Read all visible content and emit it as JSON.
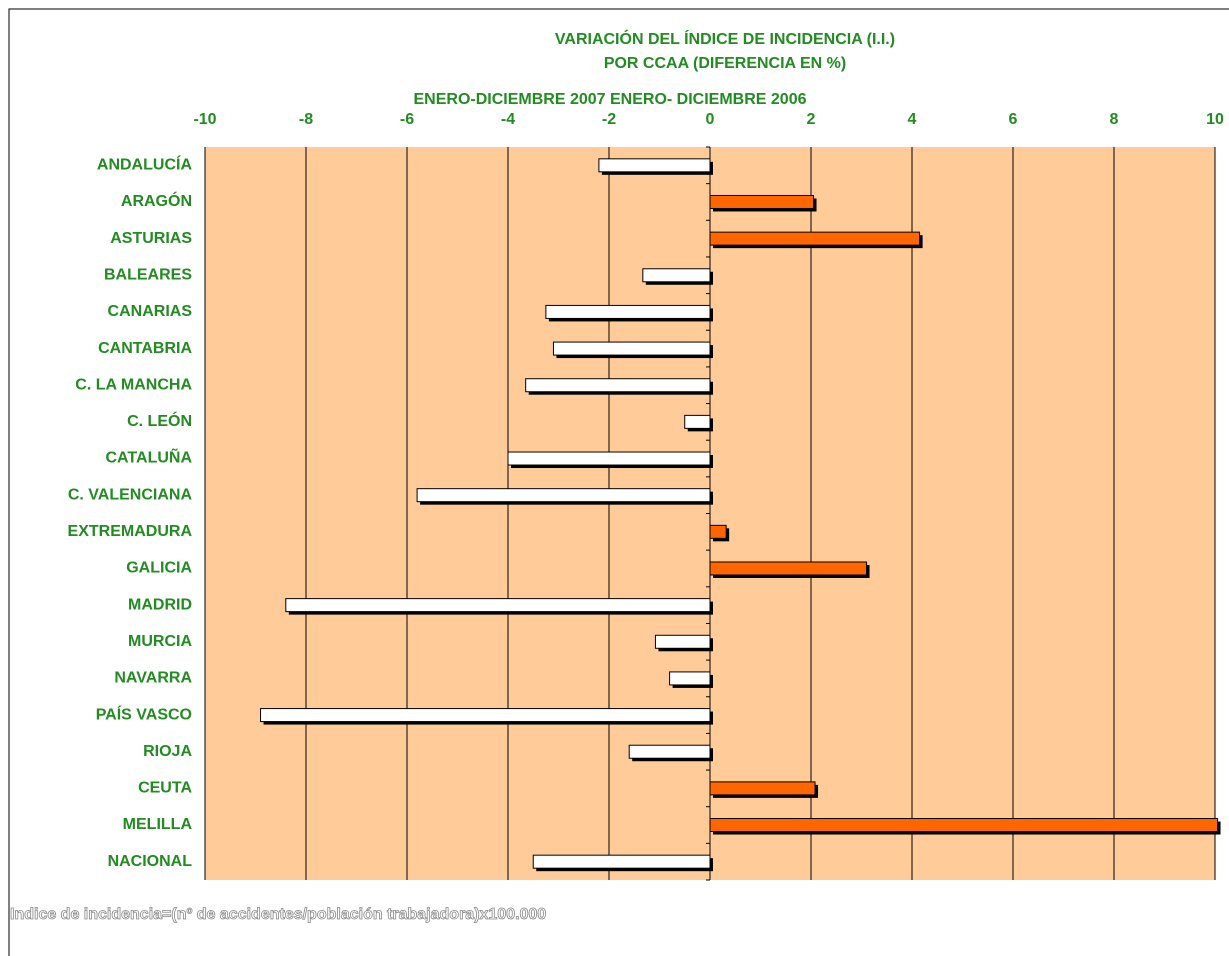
{
  "chart_data": {
    "type": "hbar",
    "title": "VARIACIÓN DEL ÍNDICE DE INCIDENCIA  (I.I.)",
    "subtitle": "POR CCAA (DIFERENCIA EN %)",
    "axis_label": "ENERO-DICIEMBRE 2007 ENERO- DICIEMBRE 2006",
    "footnote": "Indice de incidencia=(nº de accidentes/población trabajadora)x100.000",
    "categories": [
      "ANDALUCÍA",
      "ARAGÓN",
      "ASTURIAS",
      "BALEARES",
      "CANARIAS",
      "CANTABRIA",
      "C. LA MANCHA",
      "C. LEÓN",
      "CATALUÑA",
      "C. VALENCIANA",
      "EXTREMADURA",
      "GALICIA",
      "MADRID",
      "MURCIA",
      "NAVARRA",
      "PAÍS VASCO",
      "RIOJA",
      "CEUTA",
      "MELILLA",
      "NACIONAL"
    ],
    "values": [
      -2.2,
      2.05,
      4.15,
      -1.33,
      -3.25,
      -3.1,
      -3.65,
      -0.5,
      -4.0,
      -5.8,
      0.32,
      3.1,
      -8.4,
      -1.08,
      -0.8,
      -8.9,
      -1.6,
      2.08,
      10.05,
      -3.5
    ],
    "positive_color": "#ff6600",
    "negative_color": "#ffffff",
    "plot_background": "#ffcc99",
    "xlim": [
      -10,
      10
    ],
    "xticks": [
      -10,
      -8,
      -6,
      -4,
      -2,
      0,
      2,
      4,
      6,
      8,
      10
    ],
    "grid": true
  }
}
